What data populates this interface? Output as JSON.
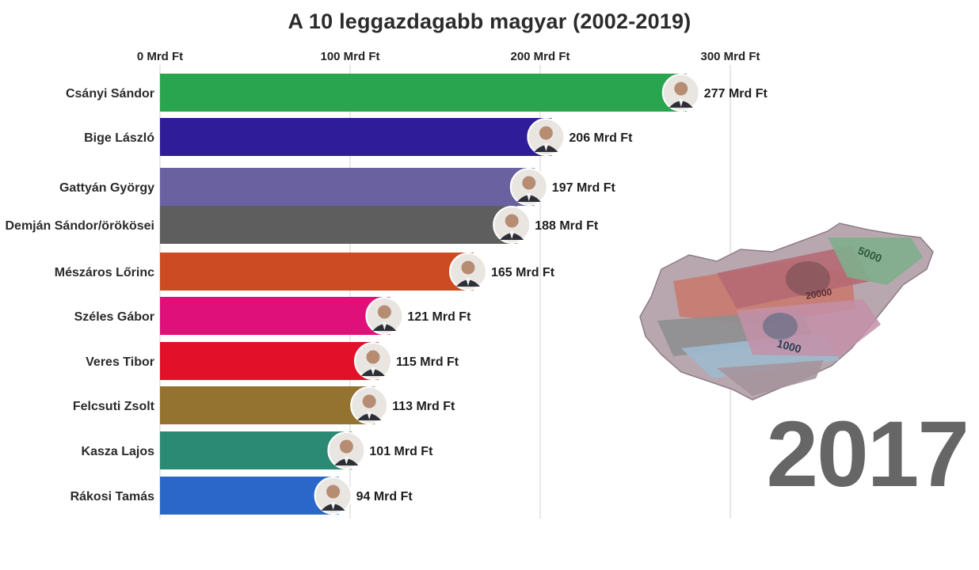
{
  "chart_data": {
    "type": "bar",
    "orientation": "horizontal",
    "title": "A 10 leggazdagabb magyar (2002-2019)",
    "unit_suffix": " Mrd Ft",
    "xlim": [
      0,
      320
    ],
    "xticks": [
      0,
      100,
      200,
      300
    ],
    "xtick_labels": [
      "0 Mrd Ft",
      "100 Mrd Ft",
      "200 Mrd Ft",
      "300 Mrd Ft"
    ],
    "grid": true,
    "year": "2017",
    "categories": [
      "Csányi Sándor",
      "Bige László",
      "Gattyán György",
      "Demján Sándor/örökösei",
      "Mészáros Lőrinc",
      "Széles Gábor",
      "Veres Tibor",
      "Felcsuti Zsolt",
      "Kasza Lajos",
      "Rákosi Tamás"
    ],
    "values": [
      277,
      206,
      197,
      188,
      165,
      121,
      115,
      113,
      101,
      94
    ],
    "value_labels": [
      "277 Mrd Ft",
      "206 Mrd Ft",
      "197 Mrd Ft",
      "188 Mrd Ft",
      "165 Mrd Ft",
      "121 Mrd Ft",
      "115 Mrd Ft",
      "113 Mrd Ft",
      "101 Mrd Ft",
      "94 Mrd Ft"
    ],
    "colors": [
      "#2aa54f",
      "#2f1c98",
      "#6a62a0",
      "#5e5e5e",
      "#cc4b22",
      "#e0107a",
      "#e3102a",
      "#94722f",
      "#2b8a73",
      "#2b67c8"
    ]
  },
  "icons": {
    "portrait": "portrait-photo-icon",
    "map": "hungary-money-map-icon"
  }
}
